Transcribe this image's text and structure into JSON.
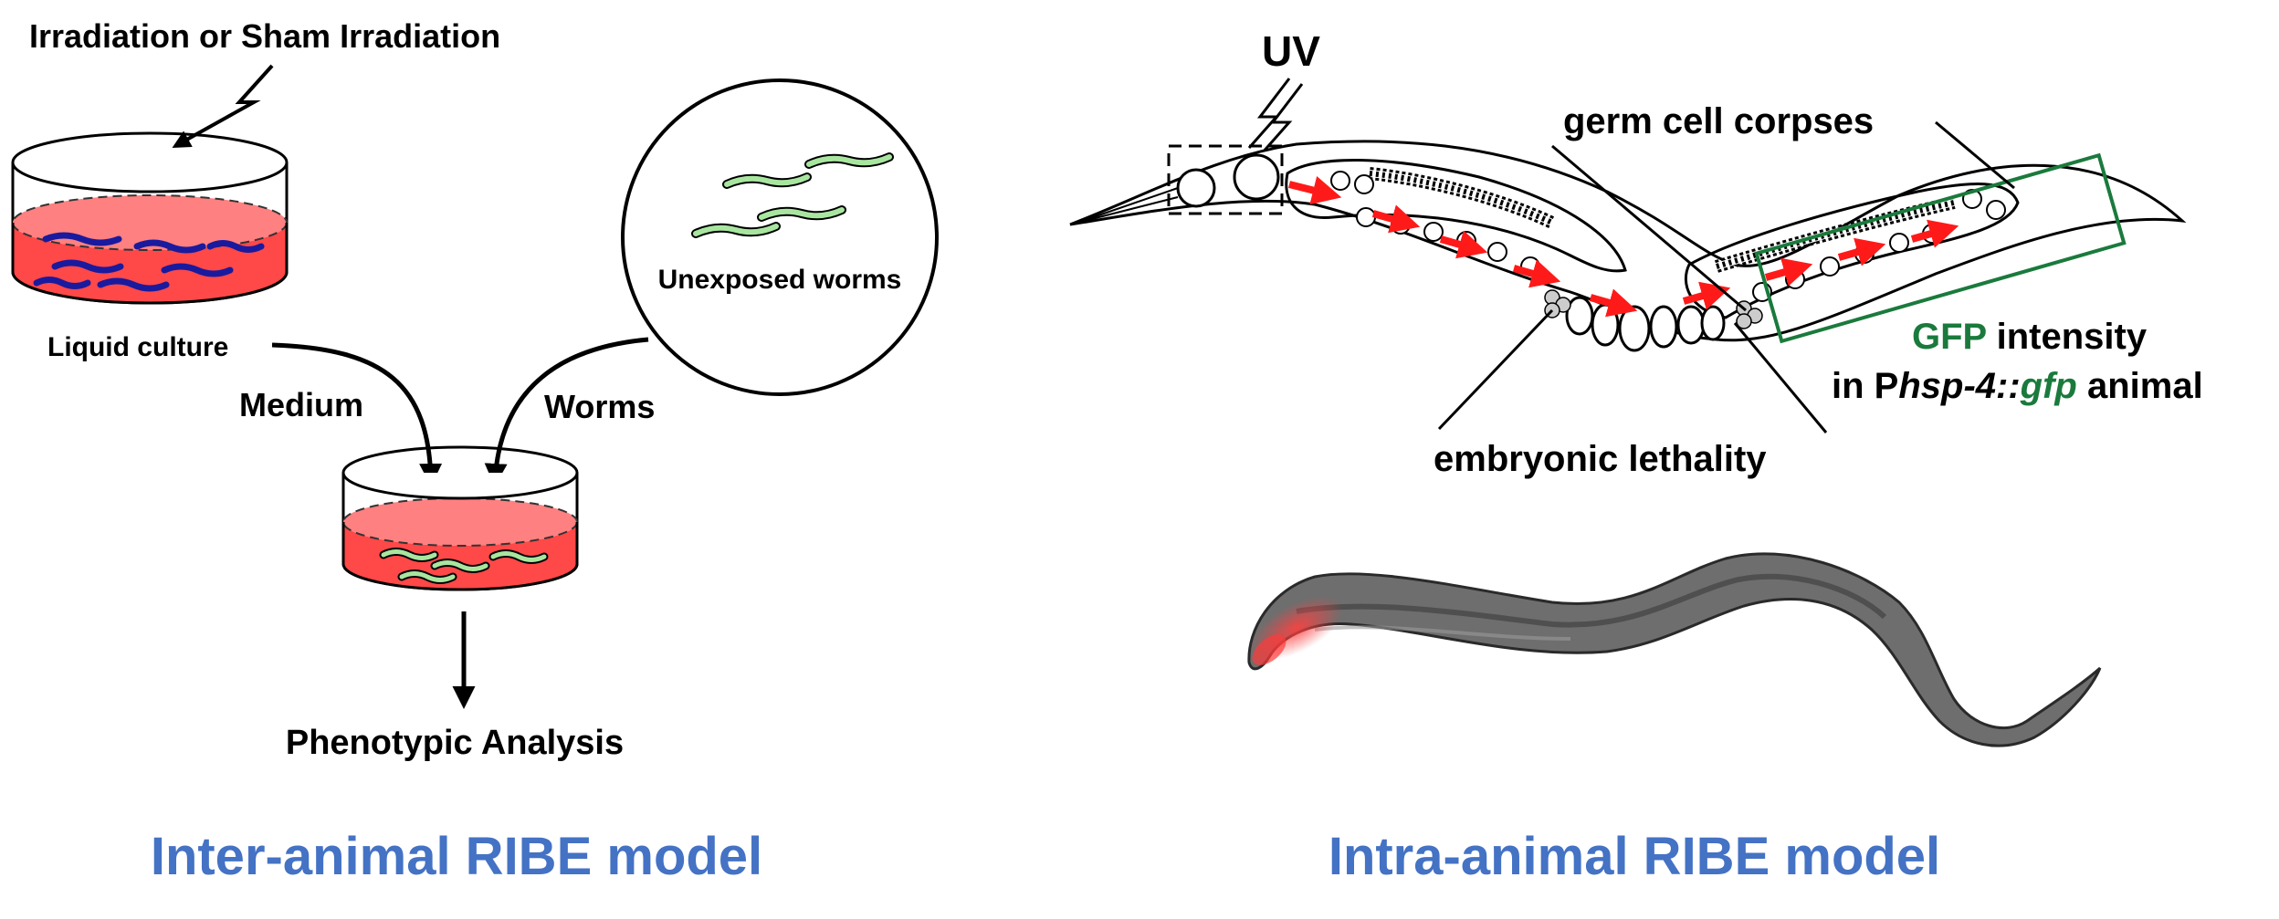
{
  "inter": {
    "irradiation_label": "Irradiation or Sham Irradiation",
    "liquid_culture_label": "Liquid culture",
    "unexposed_label": "Unexposed worms",
    "medium_label": "Medium",
    "worms_label": "Worms",
    "analysis_label": "Phenotypic Analysis",
    "model_title": "Inter-animal RIBE model"
  },
  "intra": {
    "uv_label": "UV",
    "germ_cell_label": "germ cell corpses",
    "gfp_line1_part1": "GFP",
    "gfp_line1_part2": " intensity",
    "gfp_line2_part1": "in P",
    "gfp_line2_part2": "hsp-4::",
    "gfp_line2_part3": "gfp",
    "gfp_line2_part4": " animal",
    "embryonic_label": "embryonic lethality",
    "model_title": "Intra-animal RIBE model"
  },
  "colors": {
    "title_blue": "#4472c4",
    "gfp_green": "#1a7a3c",
    "medium_red": "#ff5a5a",
    "worm_blue": "#1a1a9e",
    "worm_green": "#a8e6a0",
    "arrow_red": "#ff1a1a"
  }
}
